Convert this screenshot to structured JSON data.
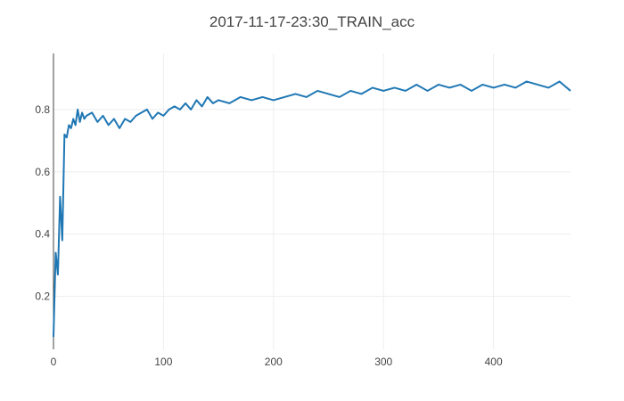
{
  "chart_data": {
    "type": "line",
    "title": "2017-11-17-23:30_TRAIN_acc",
    "xlabel": "",
    "ylabel": "",
    "xlim": [
      0,
      470
    ],
    "ylim": [
      0.03,
      0.98
    ],
    "xticks": [
      0,
      100,
      200,
      300,
      400
    ],
    "yticks": [
      0.2,
      0.4,
      0.6,
      0.8
    ],
    "grid": true,
    "series": [
      {
        "color": "#1f77b4",
        "x": [
          0,
          2,
          4,
          6,
          8,
          10,
          12,
          14,
          16,
          18,
          20,
          22,
          24,
          26,
          28,
          30,
          35,
          40,
          45,
          50,
          55,
          60,
          65,
          70,
          75,
          80,
          85,
          90,
          95,
          100,
          105,
          110,
          115,
          120,
          125,
          130,
          135,
          140,
          145,
          150,
          160,
          170,
          180,
          190,
          200,
          210,
          220,
          230,
          240,
          250,
          260,
          270,
          280,
          290,
          300,
          310,
          320,
          330,
          340,
          350,
          360,
          370,
          380,
          390,
          400,
          410,
          420,
          430,
          440,
          450,
          460,
          470
        ],
        "values": [
          0.07,
          0.34,
          0.27,
          0.52,
          0.38,
          0.72,
          0.71,
          0.75,
          0.74,
          0.77,
          0.75,
          0.8,
          0.76,
          0.79,
          0.77,
          0.78,
          0.79,
          0.76,
          0.78,
          0.75,
          0.77,
          0.74,
          0.77,
          0.76,
          0.78,
          0.79,
          0.8,
          0.77,
          0.79,
          0.78,
          0.8,
          0.81,
          0.8,
          0.82,
          0.8,
          0.83,
          0.81,
          0.84,
          0.82,
          0.83,
          0.82,
          0.84,
          0.83,
          0.84,
          0.83,
          0.84,
          0.85,
          0.84,
          0.86,
          0.85,
          0.84,
          0.86,
          0.85,
          0.87,
          0.86,
          0.87,
          0.86,
          0.88,
          0.86,
          0.88,
          0.87,
          0.88,
          0.86,
          0.88,
          0.87,
          0.88,
          0.87,
          0.89,
          0.88,
          0.87,
          0.89,
          0.86
        ]
      }
    ]
  }
}
